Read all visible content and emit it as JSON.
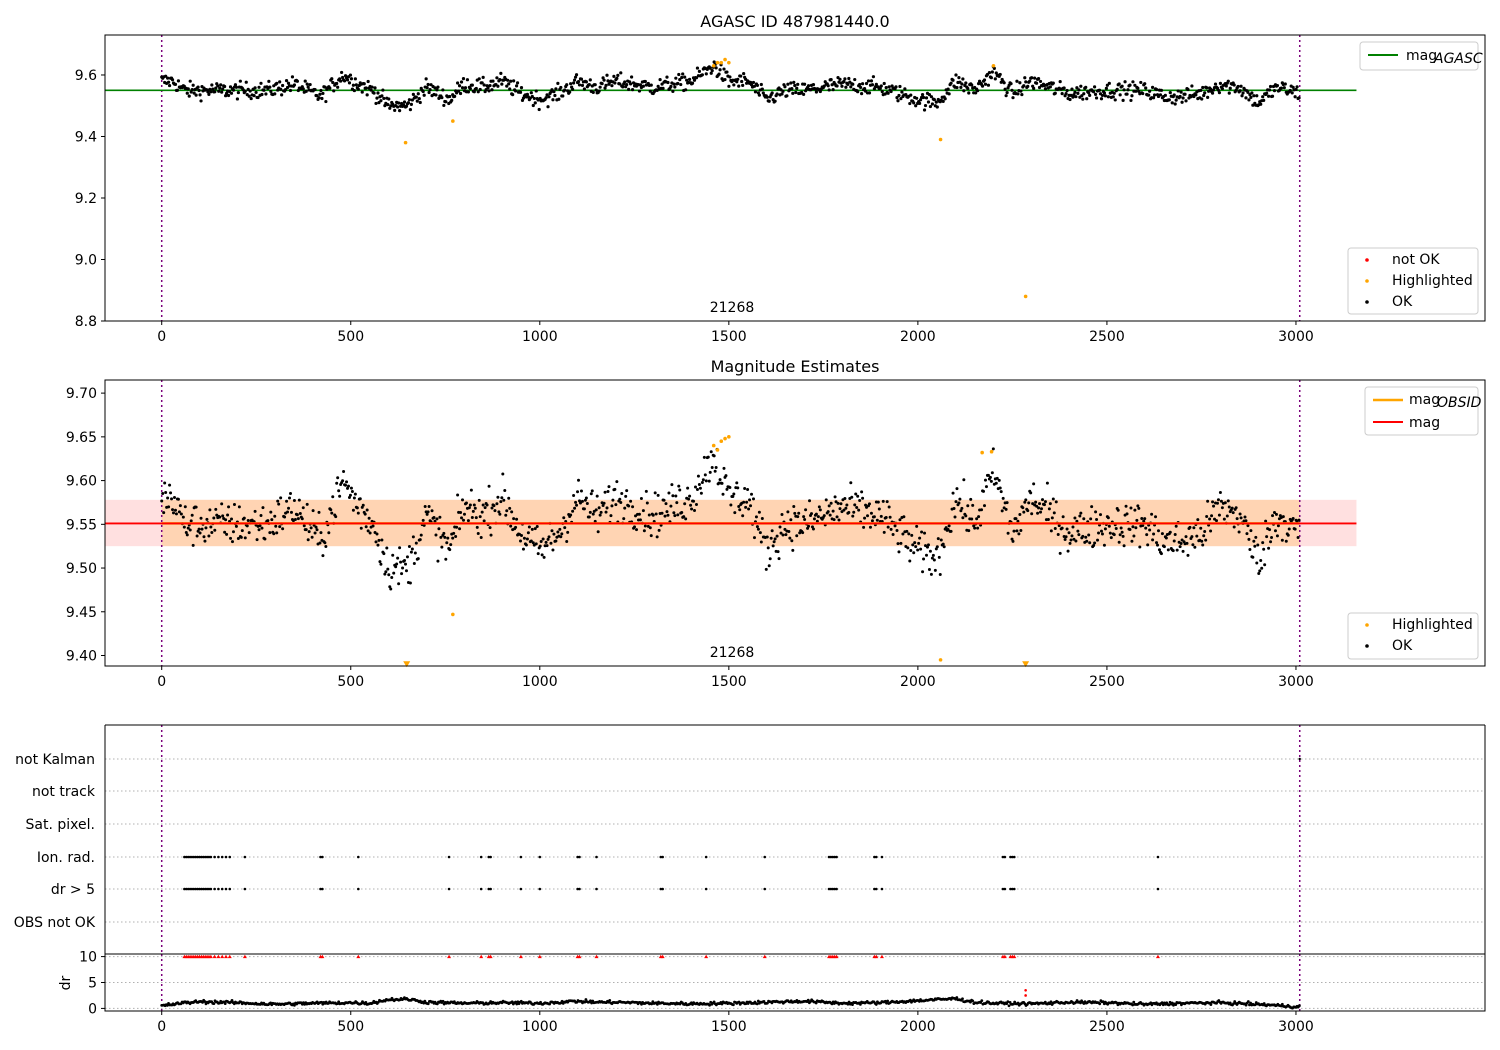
{
  "chart_data": [
    {
      "id": "top",
      "type": "scatter",
      "title": "AGASC ID 487981440.0",
      "xlim": [
        -150,
        3500
      ],
      "ylim": [
        8.8,
        9.73
      ],
      "xticks": [
        0,
        500,
        1000,
        1500,
        2000,
        2500,
        3000
      ],
      "yticks": [
        8.8,
        9.0,
        9.2,
        9.4,
        9.6
      ],
      "ytick_labels": [
        "8.8",
        "9.0",
        "9.2",
        "9.4",
        "9.6"
      ],
      "obsid_label": "21268",
      "obsid_label_x": 1500,
      "obsid_boundaries": [
        0,
        3010
      ],
      "hline": {
        "name": "mag_AGASC",
        "value": 9.55,
        "x_range": [
          -150,
          3160
        ],
        "color": "#008000"
      },
      "legend_lines": [
        {
          "label": "mag",
          "sub": "AGASC",
          "color": "#008000"
        }
      ],
      "legend_points": [
        {
          "label": "not OK",
          "color": "#ff0000"
        },
        {
          "label": "Highlighted",
          "color": "#ffa500"
        },
        {
          "label": "OK",
          "color": "#000000"
        }
      ],
      "series_profile": {
        "x": [
          0,
          30,
          60,
          120,
          200,
          280,
          350,
          420,
          480,
          520,
          560,
          600,
          650,
          700,
          760,
          800,
          850,
          900,
          950,
          1000,
          1050,
          1100,
          1150,
          1200,
          1300,
          1400,
          1460,
          1500,
          1550,
          1600,
          1650,
          1700,
          1800,
          1900,
          1950,
          2000,
          2050,
          2100,
          2150,
          2200,
          2250,
          2300,
          2400,
          2500,
          2600,
          2650,
          2700,
          2750,
          2800,
          2850,
          2900,
          2950,
          3010
        ],
        "y": [
          9.58,
          9.58,
          9.55,
          9.55,
          9.55,
          9.55,
          9.57,
          9.53,
          9.6,
          9.57,
          9.55,
          9.5,
          9.5,
          9.56,
          9.52,
          9.57,
          9.56,
          9.58,
          9.54,
          9.52,
          9.54,
          9.58,
          9.56,
          9.58,
          9.56,
          9.58,
          9.63,
          9.58,
          9.58,
          9.52,
          9.55,
          9.55,
          9.57,
          9.56,
          9.54,
          9.52,
          9.51,
          9.58,
          9.55,
          9.61,
          9.54,
          9.58,
          9.54,
          9.55,
          9.55,
          9.53,
          9.53,
          9.54,
          9.57,
          9.56,
          9.51,
          9.56,
          9.54
        ]
      },
      "highlighted_points": [
        {
          "x": 645,
          "y": 9.38
        },
        {
          "x": 770,
          "y": 9.45
        },
        {
          "x": 2060,
          "y": 9.39
        },
        {
          "x": 2285,
          "y": 8.88
        },
        {
          "x": 1460,
          "y": 9.63
        },
        {
          "x": 1470,
          "y": 9.64
        },
        {
          "x": 1480,
          "y": 9.64
        },
        {
          "x": 1490,
          "y": 9.65
        },
        {
          "x": 1500,
          "y": 9.64
        },
        {
          "x": 2200,
          "y": 9.63
        }
      ]
    },
    {
      "id": "mid",
      "type": "scatter",
      "title": "Magnitude Estimates",
      "xlim": [
        -150,
        3500
      ],
      "ylim": [
        9.388,
        9.715
      ],
      "xticks": [
        0,
        500,
        1000,
        1500,
        2000,
        2500,
        3000
      ],
      "yticks": [
        9.4,
        9.45,
        9.5,
        9.55,
        9.6,
        9.65,
        9.7
      ],
      "ytick_labels": [
        "9.40",
        "9.45",
        "9.50",
        "9.55",
        "9.60",
        "9.65",
        "9.70"
      ],
      "obsid_label": "21268",
      "obsid_label_x": 1500,
      "obsid_boundaries": [
        0,
        3010
      ],
      "hline": {
        "name": "mag",
        "value": 9.551,
        "x_range": [
          -150,
          3160
        ],
        "color": "#ff0000"
      },
      "band_obsid": {
        "lo": 9.525,
        "hi": 9.578,
        "x_range": [
          0,
          3010
        ],
        "color": "#ffa500"
      },
      "band_mag": {
        "lo": 9.525,
        "hi": 9.578,
        "x_range": [
          -150,
          3160
        ],
        "color": "#ff0000"
      },
      "legend_lines": [
        {
          "label": "mag",
          "sub": "OBSID",
          "color": "#ffa500"
        },
        {
          "label": "mag",
          "sub": "",
          "color": "#ff0000"
        }
      ],
      "legend_points": [
        {
          "label": "Highlighted",
          "color": "#ffa500"
        },
        {
          "label": "OK",
          "color": "#000000"
        }
      ],
      "highlighted_points": [
        {
          "x": 770,
          "y": 9.447
        },
        {
          "x": 2060,
          "y": 9.395
        },
        {
          "x": 1460,
          "y": 9.64
        },
        {
          "x": 1470,
          "y": 9.635
        },
        {
          "x": 1480,
          "y": 9.645
        },
        {
          "x": 1490,
          "y": 9.648
        },
        {
          "x": 1500,
          "y": 9.65
        },
        {
          "x": 2170,
          "y": 9.632
        },
        {
          "x": 2195,
          "y": 9.633
        }
      ],
      "offscale_markers": [
        {
          "x": 648,
          "y": 9.39
        },
        {
          "x": 2285,
          "y": 9.39
        }
      ]
    },
    {
      "id": "flags",
      "type": "scatter",
      "xlim": [
        -150,
        3500
      ],
      "categories": [
        "not Kalman",
        "not track",
        "Sat. pixel.",
        "Ion. rad.",
        "dr > 5",
        "OBS not OK"
      ],
      "flag_x": [
        60,
        65,
        70,
        75,
        80,
        85,
        90,
        95,
        100,
        105,
        110,
        115,
        120,
        125,
        130,
        140,
        150,
        160,
        170,
        180,
        220,
        420,
        425,
        520,
        760,
        845,
        865,
        870,
        950,
        1000,
        1100,
        1105,
        1150,
        1320,
        1325,
        1440,
        1595,
        1765,
        1770,
        1775,
        1780,
        1785,
        1885,
        1890,
        1905,
        2225,
        2230,
        2245,
        2250,
        2255,
        2635
      ],
      "flag_categories": [
        "Ion. rad.",
        "dr > 5"
      ],
      "kalman_marks": [
        3010
      ]
    },
    {
      "id": "dr",
      "type": "scatter",
      "ylabel": "dr",
      "xlim": [
        -150,
        3500
      ],
      "ylim": [
        -0.5,
        10.5
      ],
      "xticks": [
        0,
        500,
        1000,
        1500,
        2000,
        2500,
        3000
      ],
      "yticks": [
        0,
        5,
        10
      ],
      "ytick_labels": [
        "0",
        "5",
        "10"
      ],
      "obsid_boundaries": [
        0,
        3010
      ],
      "clipped_value": 10,
      "dr_profile": {
        "x": [
          0,
          50,
          100,
          200,
          300,
          400,
          500,
          550,
          600,
          650,
          700,
          800,
          900,
          1000,
          1100,
          1150,
          1200,
          1300,
          1400,
          1500,
          1600,
          1700,
          1800,
          1900,
          2000,
          2100,
          2150,
          2200,
          2300,
          2400,
          2500,
          2600,
          2700,
          2800,
          2900,
          3010
        ],
        "y": [
          0.5,
          1.0,
          1.3,
          1.1,
          0.8,
          1.0,
          1.1,
          1.0,
          1.7,
          1.8,
          1.2,
          1.0,
          1.1,
          1.0,
          1.4,
          1.2,
          1.2,
          1.0,
          0.9,
          1.0,
          1.2,
          1.4,
          1.0,
          1.1,
          1.5,
          1.9,
          1.2,
          1.0,
          0.9,
          1.2,
          1.1,
          0.8,
          1.0,
          1.1,
          0.8,
          0.3
        ]
      },
      "red_points": [
        {
          "x": 2285,
          "y": 3.5
        },
        {
          "x": 2285,
          "y": 2.5
        }
      ]
    }
  ]
}
